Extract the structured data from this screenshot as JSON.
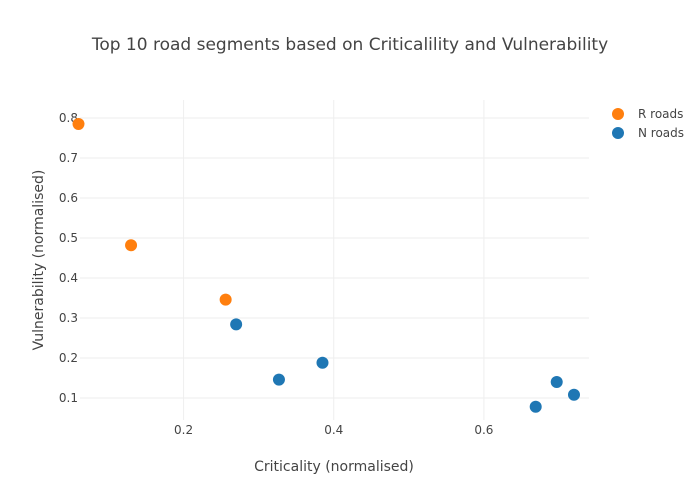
{
  "chart_data": {
    "type": "scatter",
    "title": "Top 10 road segments based on Criticalility and Vulnerability",
    "xlabel": "Criticality (normalised)",
    "ylabel": "Vulnerability (normalised)",
    "xlim": [
      0.062,
      0.74
    ],
    "ylim": [
      0.045,
      0.845
    ],
    "xticks": [
      0.2,
      0.4,
      0.6
    ],
    "xtick_labels": [
      "0.2",
      "0.4",
      "0.6"
    ],
    "yticks": [
      0.1,
      0.2,
      0.3,
      0.4,
      0.5,
      0.6,
      0.7,
      0.8
    ],
    "ytick_labels": [
      "0.1",
      "0.2",
      "0.3",
      "0.4",
      "0.5",
      "0.6",
      "0.7",
      "0.8"
    ],
    "grid": true,
    "legend_position": "top-right",
    "series": [
      {
        "name": "R roads",
        "color": "#ff7f0e",
        "points": [
          {
            "x": 0.06,
            "y": 0.785
          },
          {
            "x": 0.13,
            "y": 0.482
          },
          {
            "x": 0.256,
            "y": 0.346
          }
        ]
      },
      {
        "name": "N roads",
        "color": "#1f77b4",
        "points": [
          {
            "x": 0.27,
            "y": 0.284
          },
          {
            "x": 0.327,
            "y": 0.146
          },
          {
            "x": 0.385,
            "y": 0.188
          },
          {
            "x": 0.669,
            "y": 0.078
          },
          {
            "x": 0.697,
            "y": 0.14
          },
          {
            "x": 0.72,
            "y": 0.108
          }
        ]
      }
    ]
  }
}
